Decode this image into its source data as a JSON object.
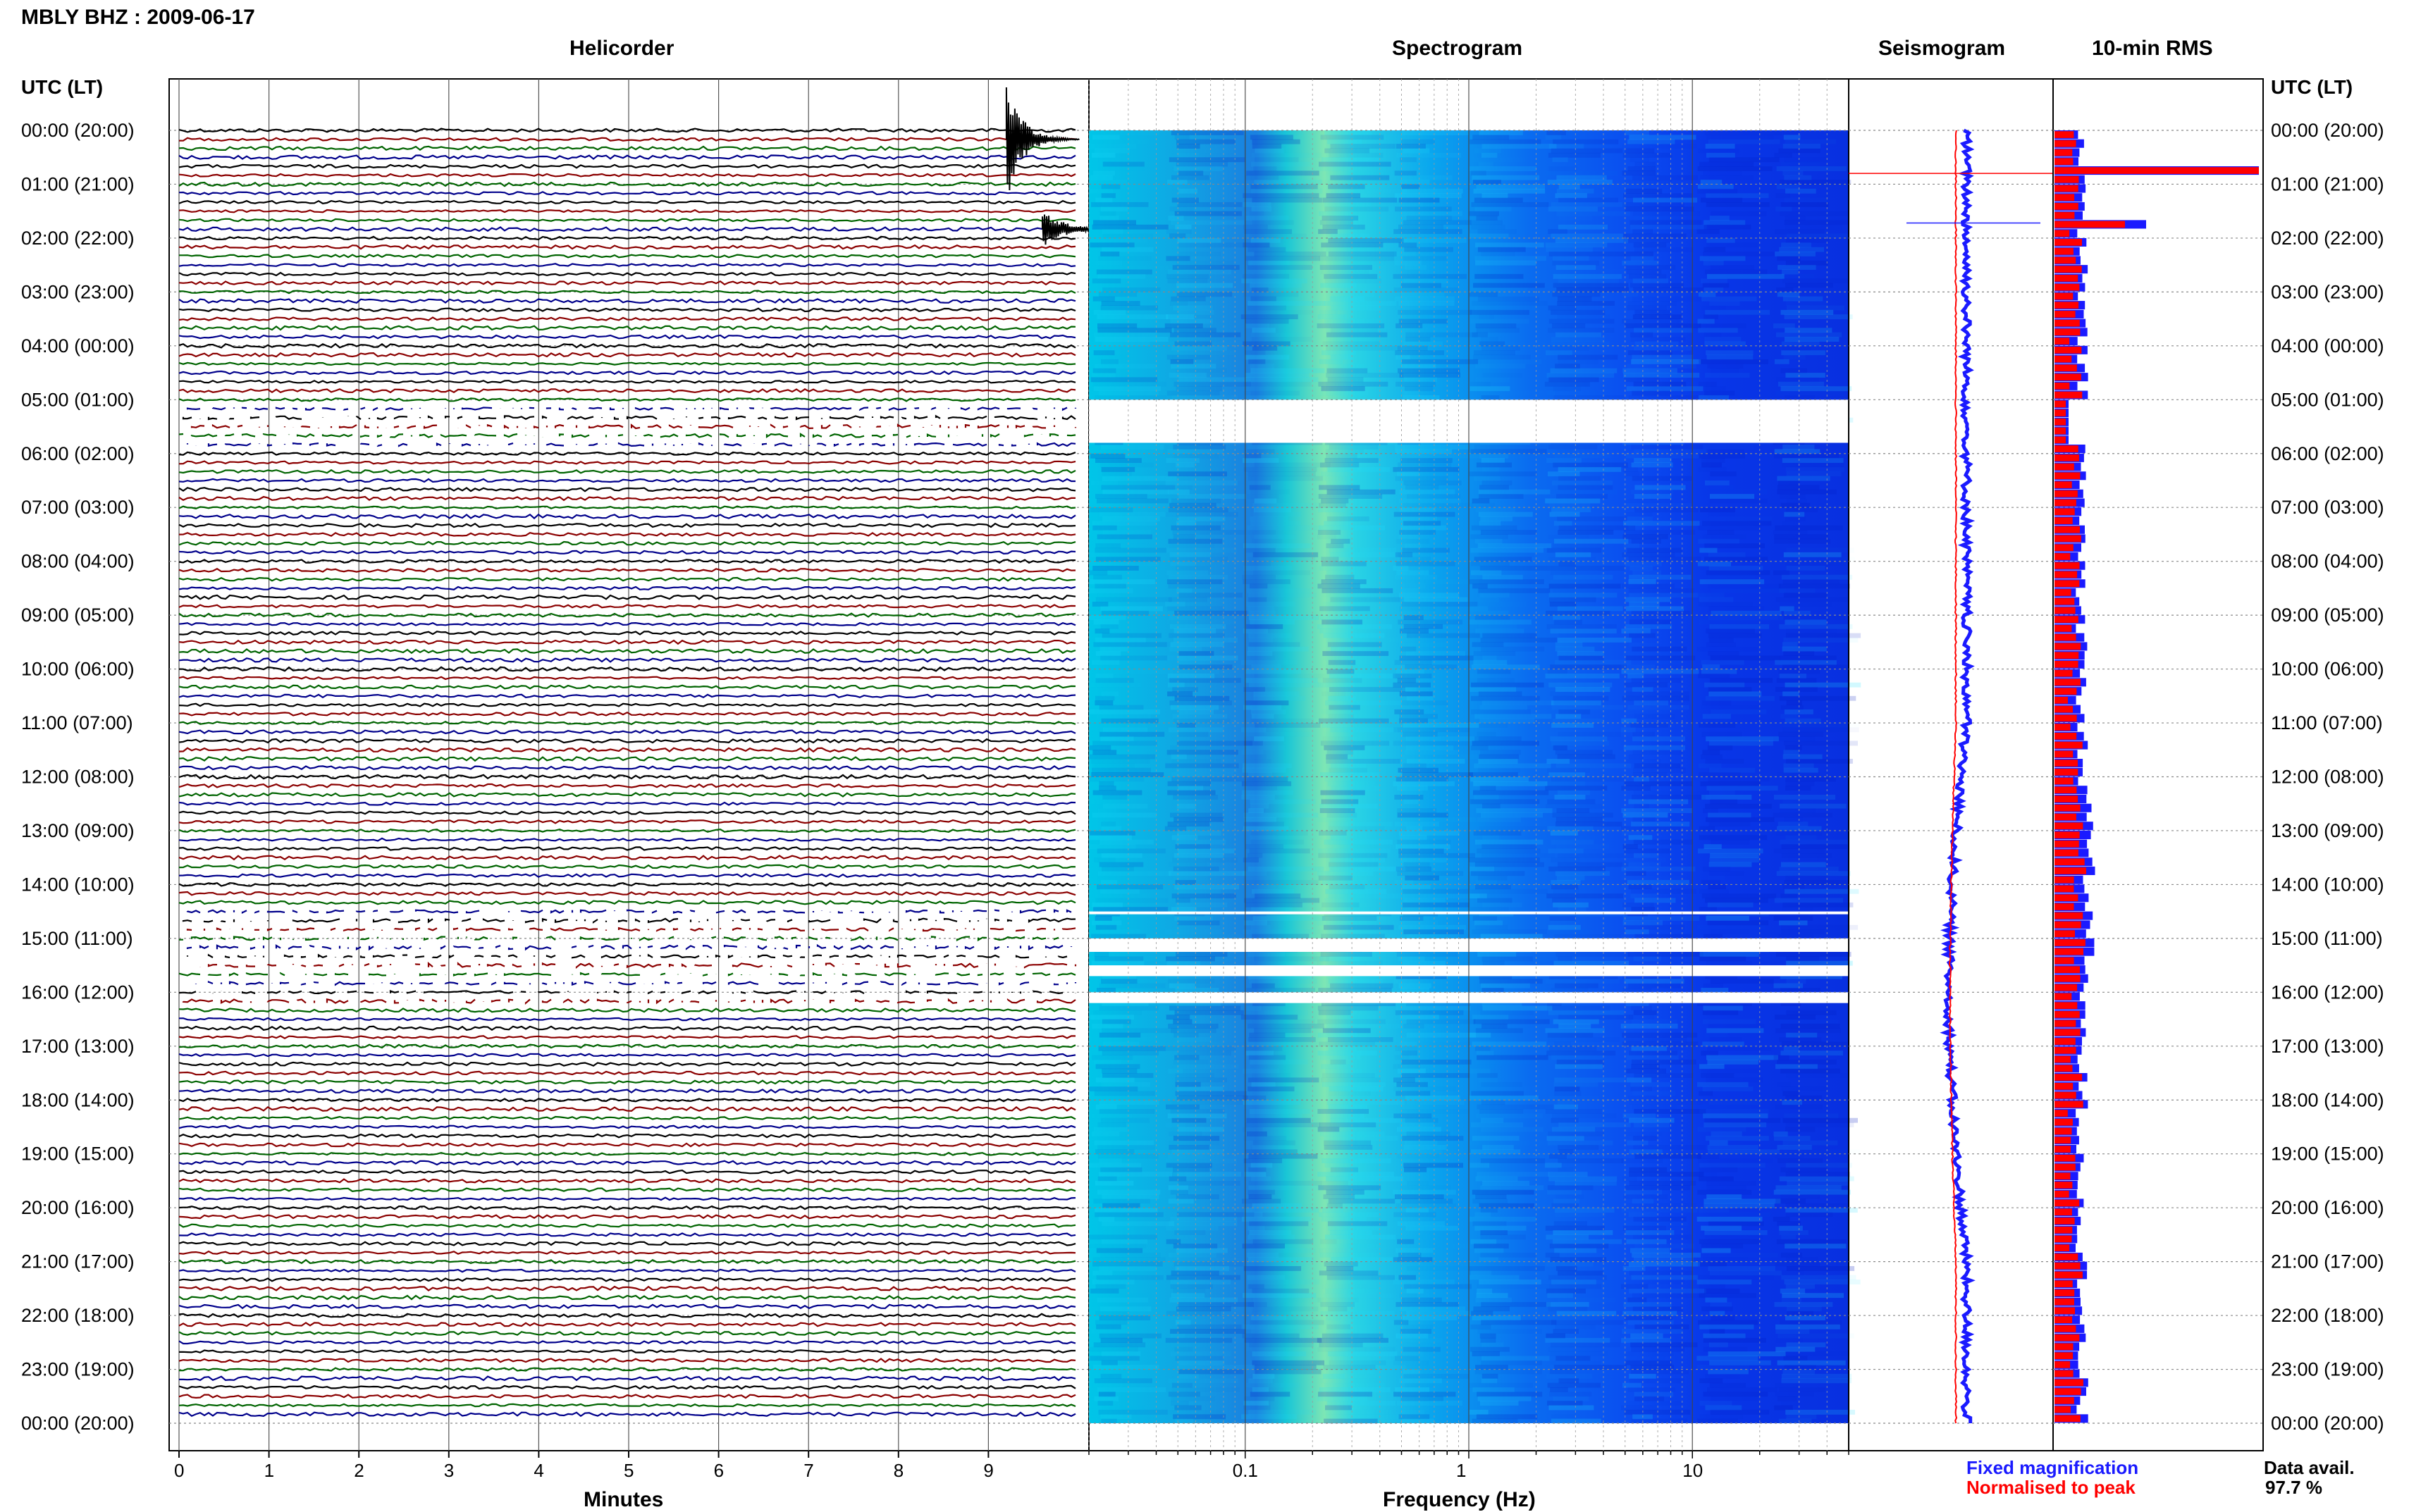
{
  "title": "MBLY BHZ : 2009-06-17",
  "panels": {
    "helicorder": "Helicorder",
    "spectrogram": "Spectrogram",
    "seismogram": "Seismogram",
    "rms": "10-min RMS"
  },
  "time_axis_label": "UTC (LT)",
  "time_labels": [
    "00:00 (20:00)",
    "01:00 (21:00)",
    "02:00 (22:00)",
    "03:00 (23:00)",
    "04:00 (00:00)",
    "05:00 (01:00)",
    "06:00 (02:00)",
    "07:00 (03:00)",
    "08:00 (04:00)",
    "09:00 (05:00)",
    "10:00 (06:00)",
    "11:00 (07:00)",
    "12:00 (08:00)",
    "13:00 (09:00)",
    "14:00 (10:00)",
    "15:00 (11:00)",
    "16:00 (12:00)",
    "17:00 (13:00)",
    "18:00 (14:00)",
    "19:00 (15:00)",
    "20:00 (16:00)",
    "21:00 (17:00)",
    "22:00 (18:00)",
    "23:00 (19:00)",
    "00:00 (20:00)"
  ],
  "helicorder_xlabel": "Minutes",
  "helicorder_ticks": [
    "0",
    "1",
    "2",
    "3",
    "4",
    "5",
    "6",
    "7",
    "8",
    "9"
  ],
  "spectrogram_xlabel": "Frequency (Hz)",
  "spectrogram_ticks": [
    "0.1",
    "1",
    "10"
  ],
  "legend": {
    "fixed": "Fixed magnification",
    "normalised": "Normalised to peak"
  },
  "data_avail": {
    "label": "Data avail.",
    "value": "97.7 %"
  },
  "colors": {
    "trace_cycle": [
      "#000000",
      "#8b0000",
      "#006400",
      "#00008b"
    ],
    "fixed": "#1a1aff",
    "normalised": "#ff0000"
  },
  "chart_data": [
    {
      "type": "line",
      "panel": "helicorder",
      "xlabel": "Minutes",
      "xlim": [
        0,
        10
      ],
      "rows_per_hour": 6,
      "hours": 24,
      "events": [
        {
          "hour": 0,
          "row": 1,
          "minute": 9.2,
          "amplitude": "large",
          "color": "#000000"
        },
        {
          "hour": 1,
          "row": 5,
          "minute": 9.6,
          "amplitude": "medium",
          "color": "#000000"
        }
      ],
      "gaps_hours": [
        [
          5.1,
          5.9
        ],
        [
          14.5,
          16.3
        ]
      ]
    },
    {
      "type": "heatmap",
      "panel": "spectrogram",
      "xlabel": "Frequency (Hz)",
      "xscale": "log",
      "xlim": [
        0.02,
        50
      ],
      "gaps_hours": [
        [
          5.0,
          5.8
        ],
        [
          14.5,
          14.55
        ],
        [
          15.0,
          15.25
        ],
        [
          15.5,
          15.7
        ],
        [
          16.0,
          16.2
        ]
      ]
    },
    {
      "type": "line",
      "panel": "seismogram",
      "series": [
        {
          "name": "Fixed magnification",
          "color": "#1a1aff"
        },
        {
          "name": "Normalised to peak",
          "color": "#ff0000"
        }
      ]
    },
    {
      "type": "bar",
      "panel": "10-min RMS",
      "orientation": "horizontal",
      "series": [
        {
          "name": "Fixed magnification",
          "color": "#1a1aff"
        },
        {
          "name": "Normalised to peak",
          "color": "#ff0000"
        }
      ]
    }
  ]
}
